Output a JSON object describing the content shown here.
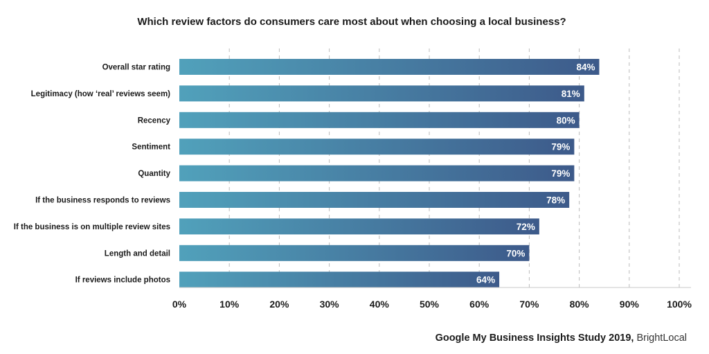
{
  "chart_data": {
    "type": "bar",
    "orientation": "horizontal",
    "title": "Which review factors do consumers care most about when choosing a local business?",
    "categories": [
      "Overall star rating",
      "Legitimacy (how ‘real’ reviews seem)",
      "Recency",
      "Sentiment",
      "Quantity",
      "If the business responds to reviews",
      "If the business is on multiple review sites",
      "Length and detail",
      "If reviews include photos"
    ],
    "values": [
      84,
      81,
      80,
      79,
      79,
      78,
      72,
      70,
      64
    ],
    "value_labels": [
      "84%",
      "81%",
      "80%",
      "79%",
      "79%",
      "78%",
      "72%",
      "70%",
      "64%"
    ],
    "xlim": [
      0,
      100
    ],
    "xticks": [
      "0%",
      "10%",
      "20%",
      "30%",
      "40%",
      "50%",
      "60%",
      "70%",
      "80%",
      "90%",
      "100%"
    ],
    "xlabel": "",
    "ylabel": "",
    "grid": "vertical dashed",
    "colors": {
      "bar_start": "#51a1bb",
      "bar_end": "#3d5a8a",
      "grid": "#bbbbbb"
    }
  },
  "source": {
    "bold": "Google My Business Insights Study 2019,",
    "normal": "BrightLocal"
  }
}
